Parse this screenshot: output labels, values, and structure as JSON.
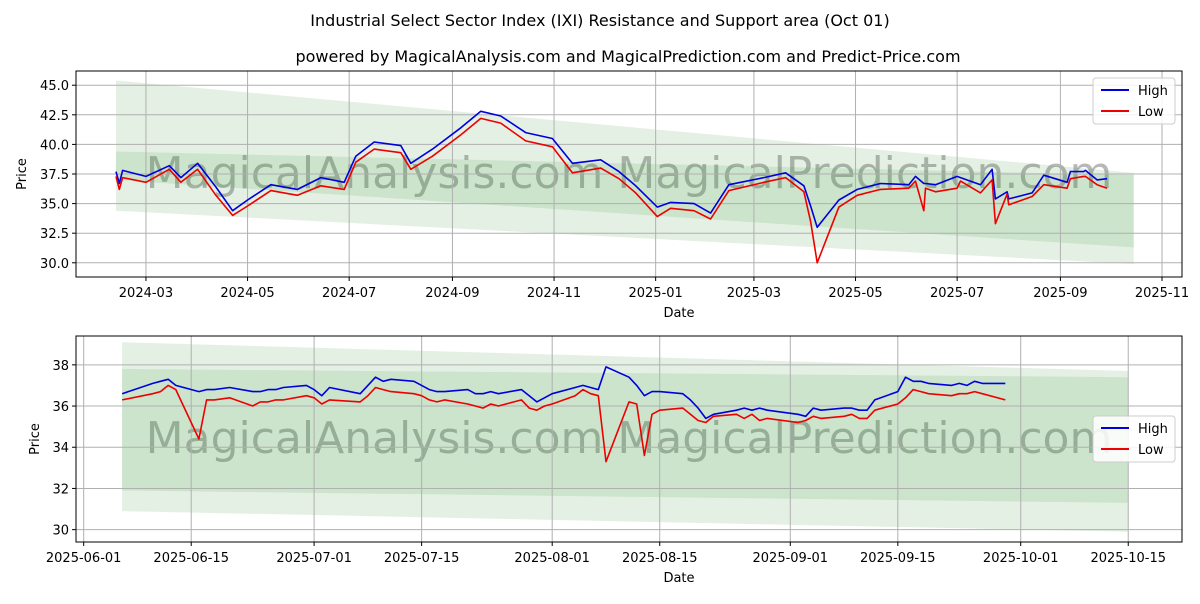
{
  "title": "Industrial Select Sector Index (IXI) Resistance and Support area (Oct 01)",
  "subtitle": "powered by MagicalAnalysis.com and MagicalPrediction.com and Predict-Price.com",
  "watermark": "MagicalAnalysis.com   MagicalPrediction.com",
  "colors": {
    "high": "#0000dd",
    "low": "#ee0000",
    "band": "#2e8b2e"
  },
  "chart_data": [
    {
      "type": "line",
      "xlabel": "Date",
      "ylabel": "Price",
      "xlim": [
        "2024-01-19",
        "2025-11-13"
      ],
      "ylim": [
        28.8,
        46.2
      ],
      "yticks": [
        30.0,
        32.5,
        35.0,
        37.5,
        40.0,
        42.5,
        45.0
      ],
      "ytick_labels": [
        "30.0",
        "32.5",
        "35.0",
        "37.5",
        "40.0",
        "42.5",
        "45.0"
      ],
      "xticks": [
        "2024-03-01",
        "2024-05-01",
        "2024-07-01",
        "2024-09-01",
        "2024-11-01",
        "2025-01-01",
        "2025-03-01",
        "2025-05-01",
        "2025-07-01",
        "2025-09-01",
        "2025-11-01"
      ],
      "xtick_labels": [
        "2024-03",
        "2024-05",
        "2024-07",
        "2024-09",
        "2024-11",
        "2025-01",
        "2025-03",
        "2025-05",
        "2025-07",
        "2025-09",
        "2025-11"
      ],
      "grid": true,
      "legend": "top-right",
      "bands": [
        {
          "x": [
            "2024-02-12",
            "2025-10-15"
          ],
          "upper": [
            45.4,
            37.6
          ],
          "lower": [
            34.4,
            29.9
          ]
        },
        {
          "x": [
            "2024-02-12",
            "2025-10-15"
          ],
          "upper": [
            39.4,
            37.4
          ],
          "lower": [
            37.0,
            31.3
          ]
        }
      ],
      "series": [
        {
          "name": "High",
          "x": [
            "2024-02-12",
            "2024-02-14",
            "2024-02-16",
            "2024-03-01",
            "2024-03-15",
            "2024-03-22",
            "2024-04-01",
            "2024-04-12",
            "2024-04-22",
            "2024-05-01",
            "2024-05-15",
            "2024-05-31",
            "2024-06-14",
            "2024-06-28",
            "2024-07-05",
            "2024-07-16",
            "2024-08-01",
            "2024-08-07",
            "2024-08-20",
            "2024-09-06",
            "2024-09-18",
            "2024-09-30",
            "2024-10-15",
            "2024-10-31",
            "2024-11-12",
            "2024-11-29",
            "2024-12-10",
            "2024-12-20",
            "2025-01-02",
            "2025-01-10",
            "2025-01-24",
            "2025-02-03",
            "2025-02-14",
            "2025-03-07",
            "2025-03-20",
            "2025-03-31",
            "2025-04-04",
            "2025-04-08",
            "2025-04-21",
            "2025-05-02",
            "2025-05-16",
            "2025-06-02",
            "2025-06-06",
            "2025-06-11",
            "2025-06-12",
            "2025-06-18",
            "2025-07-01",
            "2025-07-03",
            "2025-07-15",
            "2025-07-22",
            "2025-07-24",
            "2025-07-31",
            "2025-08-01",
            "2025-08-15",
            "2025-08-22",
            "2025-09-05",
            "2025-09-07",
            "2025-09-15",
            "2025-09-16",
            "2025-09-23",
            "2025-09-29"
          ],
          "y": [
            37.7,
            36.7,
            37.8,
            37.3,
            38.2,
            37.2,
            38.4,
            36.4,
            34.4,
            35.3,
            36.6,
            36.2,
            37.2,
            36.8,
            39.0,
            40.2,
            39.9,
            38.4,
            39.6,
            41.4,
            42.8,
            42.4,
            41.0,
            40.5,
            38.4,
            38.7,
            37.7,
            36.5,
            34.7,
            35.1,
            35.0,
            34.2,
            36.6,
            37.2,
            37.6,
            36.5,
            34.8,
            33.0,
            35.3,
            36.2,
            36.7,
            36.6,
            37.3,
            36.7,
            36.7,
            36.6,
            37.3,
            37.2,
            36.6,
            37.9,
            35.4,
            36.0,
            35.4,
            35.9,
            37.4,
            36.8,
            37.7,
            37.7,
            37.8,
            37.0,
            37.1
          ]
        },
        {
          "name": "Low",
          "x": [
            "2024-02-12",
            "2024-02-14",
            "2024-02-16",
            "2024-03-01",
            "2024-03-15",
            "2024-03-22",
            "2024-04-01",
            "2024-04-12",
            "2024-04-22",
            "2024-05-01",
            "2024-05-15",
            "2024-05-31",
            "2024-06-14",
            "2024-06-28",
            "2024-07-05",
            "2024-07-16",
            "2024-08-01",
            "2024-08-07",
            "2024-08-20",
            "2024-09-06",
            "2024-09-18",
            "2024-09-30",
            "2024-10-15",
            "2024-10-31",
            "2024-11-12",
            "2024-11-29",
            "2024-12-10",
            "2024-12-20",
            "2025-01-02",
            "2025-01-10",
            "2025-01-24",
            "2025-02-03",
            "2025-02-14",
            "2025-03-07",
            "2025-03-20",
            "2025-03-31",
            "2025-04-04",
            "2025-04-08",
            "2025-04-21",
            "2025-05-02",
            "2025-05-16",
            "2025-06-02",
            "2025-06-06",
            "2025-06-11",
            "2025-06-12",
            "2025-06-18",
            "2025-07-01",
            "2025-07-03",
            "2025-07-15",
            "2025-07-22",
            "2025-07-24",
            "2025-07-31",
            "2025-08-01",
            "2025-08-15",
            "2025-08-22",
            "2025-09-05",
            "2025-09-07",
            "2025-09-15",
            "2025-09-16",
            "2025-09-23",
            "2025-09-29"
          ],
          "y": [
            37.3,
            36.2,
            37.2,
            36.8,
            37.9,
            36.8,
            37.9,
            35.7,
            34.0,
            34.8,
            36.1,
            35.7,
            36.5,
            36.2,
            38.5,
            39.6,
            39.3,
            37.9,
            39.0,
            40.8,
            42.2,
            41.8,
            40.3,
            39.8,
            37.6,
            38.0,
            37.1,
            35.9,
            33.9,
            34.6,
            34.4,
            33.7,
            36.1,
            36.8,
            37.2,
            36.0,
            33.5,
            30.0,
            34.7,
            35.7,
            36.2,
            36.3,
            36.9,
            34.4,
            36.3,
            36.0,
            36.3,
            36.9,
            35.9,
            37.0,
            33.3,
            35.8,
            34.9,
            35.6,
            36.6,
            36.3,
            37.1,
            37.3,
            37.3,
            36.6,
            36.3
          ]
        }
      ]
    },
    {
      "type": "line",
      "xlabel": "Date",
      "ylabel": "Price",
      "xlim": [
        "2025-05-31",
        "2025-10-22"
      ],
      "ylim": [
        29.4,
        39.4
      ],
      "yticks": [
        30,
        32,
        34,
        36,
        38
      ],
      "ytick_labels": [
        "30",
        "32",
        "34",
        "36",
        "38"
      ],
      "xticks": [
        "2025-06-01",
        "2025-06-15",
        "2025-07-01",
        "2025-07-15",
        "2025-08-01",
        "2025-08-15",
        "2025-09-01",
        "2025-09-15",
        "2025-10-01",
        "2025-10-15"
      ],
      "xtick_labels": [
        "2025-06-01",
        "2025-06-15",
        "2025-07-01",
        "2025-07-15",
        "2025-08-01",
        "2025-08-15",
        "2025-09-01",
        "2025-09-15",
        "2025-10-01",
        "2025-10-15"
      ],
      "grid": true,
      "legend": "center-right",
      "bands": [
        {
          "x": [
            "2025-06-06",
            "2025-10-15"
          ],
          "upper": [
            39.1,
            37.7
          ],
          "lower": [
            30.9,
            29.9
          ]
        },
        {
          "x": [
            "2025-06-06",
            "2025-10-15"
          ],
          "upper": [
            37.8,
            37.4
          ],
          "lower": [
            31.9,
            31.3
          ]
        }
      ],
      "series": [
        {
          "name": "High",
          "x": [
            "2025-06-06",
            "2025-06-10",
            "2025-06-11",
            "2025-06-12",
            "2025-06-13",
            "2025-06-16",
            "2025-06-17",
            "2025-06-18",
            "2025-06-20",
            "2025-06-23",
            "2025-06-24",
            "2025-06-25",
            "2025-06-26",
            "2025-06-27",
            "2025-06-30",
            "2025-07-01",
            "2025-07-02",
            "2025-07-03",
            "2025-07-07",
            "2025-07-08",
            "2025-07-09",
            "2025-07-10",
            "2025-07-11",
            "2025-07-14",
            "2025-07-15",
            "2025-07-16",
            "2025-07-17",
            "2025-07-18",
            "2025-07-21",
            "2025-07-22",
            "2025-07-23",
            "2025-07-24",
            "2025-07-25",
            "2025-07-28",
            "2025-07-29",
            "2025-07-30",
            "2025-07-31",
            "2025-08-01",
            "2025-08-04",
            "2025-08-05",
            "2025-08-06",
            "2025-08-07",
            "2025-08-08",
            "2025-08-11",
            "2025-08-12",
            "2025-08-13",
            "2025-08-14",
            "2025-08-15",
            "2025-08-18",
            "2025-08-19",
            "2025-08-20",
            "2025-08-21",
            "2025-08-22",
            "2025-08-25",
            "2025-08-26",
            "2025-08-27",
            "2025-08-28",
            "2025-08-29",
            "2025-09-02",
            "2025-09-03",
            "2025-09-04",
            "2025-09-05",
            "2025-09-08",
            "2025-09-09",
            "2025-09-10",
            "2025-09-11",
            "2025-09-12",
            "2025-09-15",
            "2025-09-16",
            "2025-09-17",
            "2025-09-18",
            "2025-09-19",
            "2025-09-22",
            "2025-09-23",
            "2025-09-24",
            "2025-09-25",
            "2025-09-26",
            "2025-09-29"
          ],
          "y": [
            36.6,
            37.1,
            37.2,
            37.3,
            37.0,
            36.7,
            36.8,
            36.8,
            36.9,
            36.7,
            36.7,
            36.8,
            36.8,
            36.9,
            37.0,
            36.8,
            36.5,
            36.9,
            36.6,
            37.0,
            37.4,
            37.2,
            37.3,
            37.2,
            37.0,
            36.8,
            36.7,
            36.7,
            36.8,
            36.6,
            36.6,
            36.7,
            36.6,
            36.8,
            36.5,
            36.2,
            36.4,
            36.6,
            36.9,
            37.0,
            36.9,
            36.8,
            37.9,
            37.4,
            37.0,
            36.5,
            36.7,
            36.7,
            36.6,
            36.3,
            35.9,
            35.4,
            35.6,
            35.8,
            35.9,
            35.8,
            35.9,
            35.8,
            35.6,
            35.5,
            35.9,
            35.8,
            35.9,
            35.9,
            35.8,
            35.8,
            36.3,
            36.7,
            37.4,
            37.2,
            37.2,
            37.1,
            37.0,
            37.1,
            37.0,
            37.2,
            37.1,
            37.1
          ],
          "note": "sequence ends on the last visible point"
        },
        {
          "name": "Low",
          "x": [
            "2025-06-06",
            "2025-06-10",
            "2025-06-11",
            "2025-06-12",
            "2025-06-13",
            "2025-06-16",
            "2025-06-17",
            "2025-06-18",
            "2025-06-20",
            "2025-06-23",
            "2025-06-24",
            "2025-06-25",
            "2025-06-26",
            "2025-06-27",
            "2025-06-30",
            "2025-07-01",
            "2025-07-02",
            "2025-07-03",
            "2025-07-07",
            "2025-07-08",
            "2025-07-09",
            "2025-07-10",
            "2025-07-11",
            "2025-07-14",
            "2025-07-15",
            "2025-07-16",
            "2025-07-17",
            "2025-07-18",
            "2025-07-21",
            "2025-07-22",
            "2025-07-23",
            "2025-07-24",
            "2025-07-25",
            "2025-07-28",
            "2025-07-29",
            "2025-07-30",
            "2025-07-31",
            "2025-08-01",
            "2025-08-04",
            "2025-08-05",
            "2025-08-06",
            "2025-08-07",
            "2025-08-08",
            "2025-08-11",
            "2025-08-12",
            "2025-08-13",
            "2025-08-14",
            "2025-08-15",
            "2025-08-18",
            "2025-08-19",
            "2025-08-20",
            "2025-08-21",
            "2025-08-22",
            "2025-08-25",
            "2025-08-26",
            "2025-08-27",
            "2025-08-28",
            "2025-08-29",
            "2025-09-02",
            "2025-09-03",
            "2025-09-04",
            "2025-09-05",
            "2025-09-08",
            "2025-09-09",
            "2025-09-10",
            "2025-09-11",
            "2025-09-12",
            "2025-09-15",
            "2025-09-16",
            "2025-09-17",
            "2025-09-18",
            "2025-09-19",
            "2025-09-22",
            "2025-09-23",
            "2025-09-24",
            "2025-09-25",
            "2025-09-26",
            "2025-09-29"
          ],
          "y": [
            36.3,
            36.6,
            36.7,
            37.0,
            36.8,
            34.4,
            36.3,
            36.3,
            36.4,
            36.0,
            36.2,
            36.2,
            36.3,
            36.3,
            36.5,
            36.4,
            36.1,
            36.3,
            36.2,
            36.5,
            36.9,
            36.8,
            36.7,
            36.6,
            36.5,
            36.3,
            36.2,
            36.3,
            36.1,
            36.0,
            35.9,
            36.1,
            36.0,
            36.3,
            35.9,
            35.8,
            36.0,
            36.1,
            36.5,
            36.8,
            36.6,
            36.5,
            33.3,
            36.2,
            36.1,
            33.6,
            35.6,
            35.8,
            35.9,
            35.6,
            35.3,
            35.2,
            35.5,
            35.6,
            35.4,
            35.6,
            35.3,
            35.4,
            35.2,
            35.3,
            35.5,
            35.4,
            35.5,
            35.6,
            35.4,
            35.4,
            35.8,
            36.1,
            36.4,
            36.8,
            36.7,
            36.6,
            36.5,
            36.6,
            36.6,
            36.7,
            36.6,
            36.3
          ],
          "note": "sequence ends on the last visible point"
        }
      ]
    }
  ]
}
